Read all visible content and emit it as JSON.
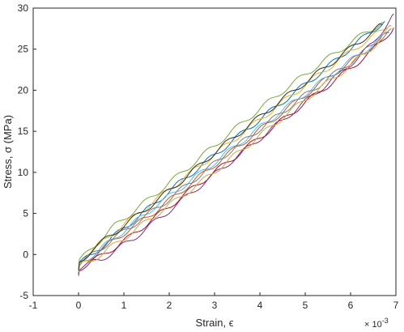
{
  "chart_data": {
    "type": "line",
    "xlabel": "Strain, ϵ",
    "ylabel": "Stress, σ (MPa)",
    "x_exponent": "× 10^-3",
    "x_exponent_base": "× 10",
    "x_exponent_power": "-3",
    "xlim": [
      -1,
      7
    ],
    "ylim": [
      -5,
      30
    ],
    "x_ticks": [
      "-1",
      "0",
      "1",
      "2",
      "3",
      "4",
      "5",
      "6",
      "7"
    ],
    "y_ticks": [
      "-5",
      "0",
      "5",
      "10",
      "15",
      "20",
      "25",
      "30"
    ],
    "grid": false,
    "legend": "none",
    "series": [
      {
        "color": "#0072BD",
        "x": [
          0,
          0.02,
          0.3,
          0.8,
          1.5,
          2.2,
          3.0,
          3.8,
          4.6,
          5.4,
          6.1,
          6.75
        ],
        "y": [
          -2.3,
          -1.0,
          -0.1,
          2.3,
          5.4,
          8.6,
          12.1,
          15.6,
          19.0,
          22.4,
          25.6,
          28.4
        ]
      },
      {
        "color": "#D95319",
        "x": [
          0,
          0.02,
          0.4,
          1.0,
          1.7,
          2.4,
          3.2,
          4.0,
          4.8,
          5.6,
          6.3,
          6.85
        ],
        "y": [
          -2.0,
          -1.3,
          0.2,
          2.6,
          5.3,
          8.3,
          11.8,
          15.2,
          18.6,
          21.9,
          24.6,
          27.0
        ]
      },
      {
        "color": "#EDB120",
        "x": [
          0,
          0.02,
          0.3,
          0.9,
          1.6,
          2.3,
          3.1,
          3.9,
          4.7,
          5.5,
          6.2,
          6.8
        ],
        "y": [
          -1.8,
          -0.9,
          0.5,
          3.2,
          6.2,
          9.2,
          12.6,
          16.0,
          19.4,
          22.7,
          25.5,
          27.6
        ]
      },
      {
        "color": "#7E2F8E",
        "x": [
          0,
          0.02,
          0.5,
          1.2,
          1.9,
          2.6,
          3.4,
          4.2,
          5.0,
          5.8,
          6.5,
          6.95
        ],
        "y": [
          -2.6,
          -1.6,
          -0.6,
          1.9,
          4.9,
          8.0,
          11.5,
          15.0,
          18.6,
          22.2,
          25.7,
          29.3
        ]
      },
      {
        "color": "#77AC30",
        "x": [
          0,
          0.02,
          0.3,
          0.8,
          1.5,
          2.2,
          2.9,
          3.7,
          4.5,
          5.3,
          6.0,
          6.7
        ],
        "y": [
          -1.6,
          -0.8,
          0.8,
          3.5,
          6.5,
          9.6,
          12.8,
          16.4,
          19.9,
          23.1,
          25.8,
          28.3
        ]
      },
      {
        "color": "#4DBEEE",
        "x": [
          0,
          0.02,
          0.4,
          1.0,
          1.7,
          2.5,
          3.3,
          4.1,
          4.9,
          5.7,
          6.4,
          6.85
        ],
        "y": [
          -2.1,
          -1.1,
          0.3,
          2.9,
          5.9,
          9.1,
          12.5,
          15.9,
          19.2,
          22.4,
          25.2,
          27.0
        ]
      },
      {
        "color": "#A2142F",
        "x": [
          0,
          0.02,
          0.5,
          1.1,
          1.8,
          2.6,
          3.4,
          4.2,
          5.0,
          5.8,
          6.5,
          6.95
        ],
        "y": [
          -2.4,
          -1.7,
          -0.2,
          2.0,
          5.0,
          8.4,
          11.7,
          15.1,
          18.5,
          21.8,
          24.9,
          27.6
        ]
      },
      {
        "color": "#7a7a7a",
        "x": [
          0,
          0.02,
          0.4,
          1.0,
          1.8,
          2.5,
          3.3,
          4.1,
          4.9,
          5.7,
          6.4,
          6.9
        ],
        "y": [
          -2.0,
          -1.2,
          0.4,
          2.8,
          5.9,
          8.9,
          12.4,
          15.7,
          19.0,
          22.2,
          25.1,
          27.5
        ]
      },
      {
        "color": "#D9A53F",
        "x": [
          0,
          0.02,
          0.5,
          1.1,
          1.9,
          2.7,
          3.5,
          4.3,
          5.1,
          5.9,
          6.6,
          6.9
        ],
        "y": [
          -2.2,
          -1.4,
          0.0,
          2.4,
          5.6,
          8.8,
          12.3,
          15.8,
          19.3,
          22.6,
          25.8,
          27.8
        ]
      },
      {
        "color": "#2E2E2E",
        "x": [
          0,
          0.02,
          0.3,
          0.9,
          1.6,
          2.3,
          3.0,
          3.8,
          4.6,
          5.4,
          6.1,
          6.7
        ],
        "y": [
          -1.9,
          -1.0,
          0.6,
          3.1,
          6.0,
          9.1,
          12.4,
          15.9,
          19.3,
          22.6,
          25.5,
          28.0
        ]
      }
    ]
  }
}
